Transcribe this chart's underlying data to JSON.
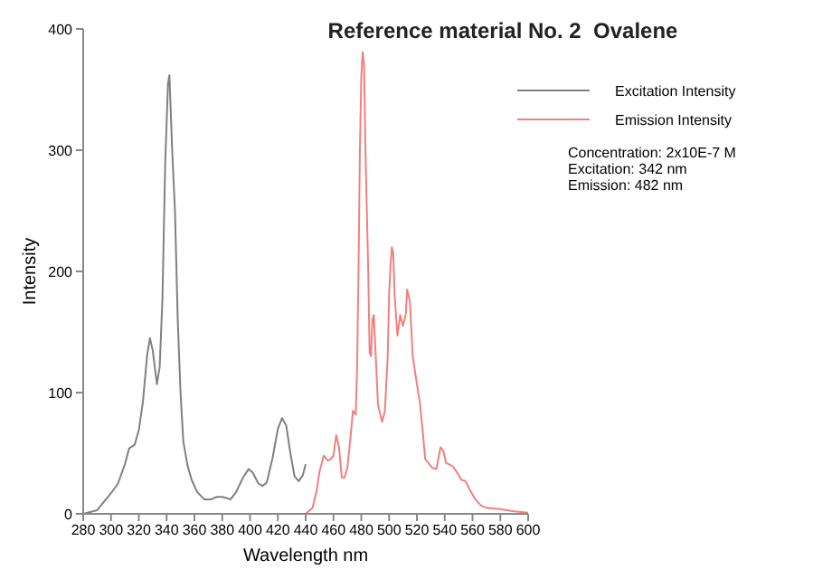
{
  "chart_data": {
    "type": "line",
    "title": "Reference material No. 2  Ovalene",
    "xlabel": "Wavelength nm",
    "ylabel": "Intensity",
    "xlim": [
      280,
      600
    ],
    "xticks": [
      280,
      300,
      320,
      340,
      360,
      380,
      400,
      420,
      440,
      460,
      480,
      500,
      520,
      540,
      560,
      580,
      600
    ],
    "ylim": [
      0,
      400
    ],
    "yticks": [
      0,
      100,
      200,
      300,
      400
    ],
    "grid": false,
    "legend": "top right",
    "marker": "none",
    "line_style": "solid",
    "annotations": [
      "Concentration: 2x10E-7 M",
      "Excitation: 342 nm",
      "Emission: 482 nm"
    ],
    "series": [
      {
        "name": "Excitation Intensity",
        "color": "#808080",
        "x": [
          280,
          290,
          300,
          305,
          310,
          313,
          317,
          320,
          323,
          326,
          328,
          330,
          333,
          335,
          337,
          339,
          341,
          342,
          344,
          346,
          348,
          350,
          352,
          355,
          358,
          362,
          367,
          372,
          376,
          380,
          383,
          386,
          390,
          395,
          399,
          402,
          406,
          409,
          412,
          416,
          420,
          423,
          426,
          429,
          432,
          435,
          438,
          440
        ],
        "values": [
          0,
          3,
          17,
          25,
          41,
          54,
          57,
          69,
          93,
          131,
          145,
          135,
          107,
          121,
          178,
          290,
          355,
          362,
          300,
          250,
          160,
          100,
          60,
          40,
          28,
          18,
          12,
          12,
          14,
          14,
          13,
          12,
          18,
          30,
          37,
          34,
          25,
          23,
          26,
          45,
          70,
          79,
          73,
          50,
          31,
          27,
          32,
          41
        ]
      },
      {
        "name": "Emission Intensity",
        "color": "#f08080",
        "x": [
          440,
          445,
          448,
          450,
          453,
          456,
          458,
          460,
          462,
          464,
          466,
          468,
          470,
          472,
          474,
          476,
          477,
          478,
          479,
          480,
          481,
          482,
          483,
          485,
          486,
          487,
          488,
          489,
          490,
          492,
          495,
          497,
          499,
          500,
          501,
          502,
          503,
          504,
          506,
          508,
          510,
          512,
          513,
          515,
          517,
          520,
          522,
          524,
          526,
          529,
          531,
          534,
          537,
          539,
          541,
          543,
          546,
          549,
          552,
          555,
          558,
          562,
          566,
          570,
          580,
          590,
          600
        ],
        "values": [
          0,
          5,
          20,
          35,
          48,
          44,
          45,
          48,
          65,
          55,
          30,
          30,
          38,
          60,
          85,
          82,
          120,
          200,
          300,
          360,
          381,
          370,
          300,
          200,
          133,
          130,
          160,
          164,
          140,
          90,
          76,
          85,
          130,
          180,
          205,
          220,
          215,
          180,
          147,
          164,
          155,
          165,
          185,
          175,
          130,
          107,
          93,
          70,
          45,
          41,
          38,
          37,
          55,
          52,
          42,
          41,
          39,
          34,
          28,
          27,
          20,
          12,
          7,
          5,
          4,
          2,
          1
        ]
      }
    ]
  }
}
